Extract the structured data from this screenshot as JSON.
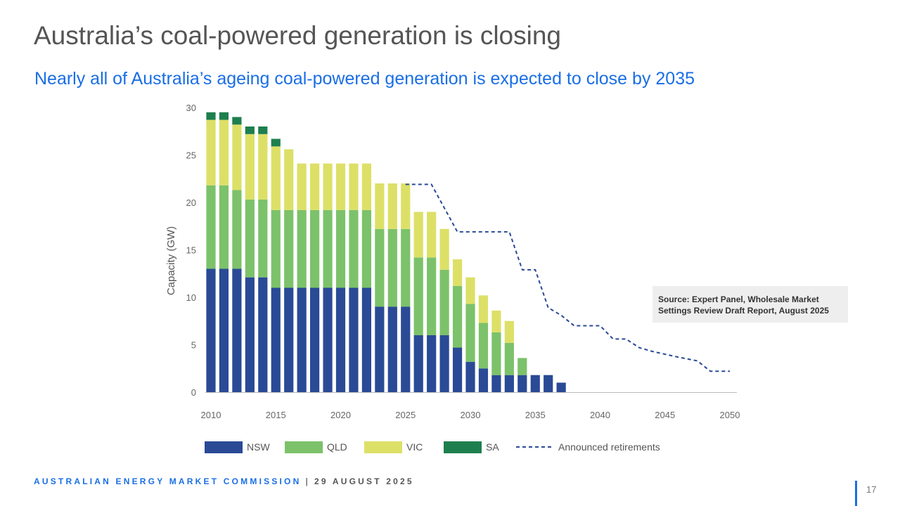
{
  "slide": {
    "title": "Australia’s coal-powered generation is closing",
    "subtitle": "Nearly all of Australia’s ageing coal-powered generation is expected to close by 2035",
    "source": "Source:  Expert Panel, Wholesale Market Settings Review Draft Report, August 2025",
    "footer_org": "AUSTRALIAN ENERGY MARKET COMMISSION",
    "footer_sep": "|",
    "footer_date": "29 AUGUST 2025",
    "page_number": "17"
  },
  "chart_data": {
    "type": "bar",
    "stacked": true,
    "ylabel": "Capacity (GW)",
    "ylim": [
      0,
      30
    ],
    "yticks": [
      0,
      5,
      10,
      15,
      20,
      25,
      30
    ],
    "xlim": [
      2010,
      2050
    ],
    "xticks": [
      2010,
      2015,
      2020,
      2025,
      2030,
      2035,
      2040,
      2045,
      2050
    ],
    "legend_position": "bottom",
    "categories": [
      2010,
      2011,
      2012,
      2013,
      2014,
      2015,
      2016,
      2017,
      2018,
      2019,
      2020,
      2021,
      2022,
      2023,
      2024,
      2025,
      2026,
      2027,
      2028,
      2029,
      2030,
      2031,
      2032,
      2033,
      2034,
      2035,
      2036,
      2037
    ],
    "series": [
      {
        "name": "NSW",
        "color": "#2a4a96",
        "values": [
          13.0,
          13.0,
          13.0,
          12.1,
          12.1,
          11.0,
          11.0,
          11.0,
          11.0,
          11.0,
          11.0,
          11.0,
          11.0,
          9.0,
          9.0,
          9.0,
          6.0,
          6.0,
          6.0,
          4.7,
          3.2,
          2.5,
          1.8,
          1.8,
          1.8,
          1.8,
          1.8,
          1.0
        ]
      },
      {
        "name": "QLD",
        "color": "#7cc26a",
        "values": [
          8.8,
          8.8,
          8.3,
          8.2,
          8.2,
          8.2,
          8.2,
          8.2,
          8.2,
          8.2,
          8.2,
          8.2,
          8.2,
          8.2,
          8.2,
          8.2,
          8.2,
          8.2,
          6.9,
          6.5,
          6.1,
          4.8,
          4.5,
          3.4,
          1.8,
          0,
          0,
          0
        ]
      },
      {
        "name": "VIC",
        "color": "#dde067",
        "values": [
          6.9,
          6.9,
          6.9,
          6.9,
          6.9,
          6.7,
          6.4,
          4.9,
          4.9,
          4.9,
          4.9,
          4.9,
          4.9,
          4.8,
          4.8,
          4.8,
          4.8,
          4.8,
          4.3,
          2.8,
          2.8,
          2.9,
          2.3,
          2.3,
          0,
          0,
          0,
          0
        ]
      },
      {
        "name": "SA",
        "color": "#1e7f4e",
        "values": [
          0.8,
          0.8,
          0.8,
          0.8,
          0.8,
          0.8,
          0,
          0,
          0,
          0,
          0,
          0,
          0,
          0,
          0,
          0,
          0,
          0,
          0,
          0,
          0,
          0,
          0,
          0,
          0,
          0,
          0,
          0
        ]
      }
    ],
    "announced_retirements": {
      "name": "Announced retirements",
      "color": "#2a4a96",
      "x": [
        2025,
        2027,
        2029,
        2033,
        2034,
        2035,
        2036,
        2037,
        2038,
        2040,
        2041,
        2042,
        2043,
        2044,
        2046,
        2047.5,
        2048.5,
        2050
      ],
      "y": [
        21.9,
        21.9,
        16.9,
        16.9,
        12.9,
        12.9,
        8.9,
        8.1,
        7.0,
        7.0,
        5.6,
        5.6,
        4.7,
        4.3,
        3.7,
        3.3,
        2.2,
        2.2
      ]
    }
  }
}
